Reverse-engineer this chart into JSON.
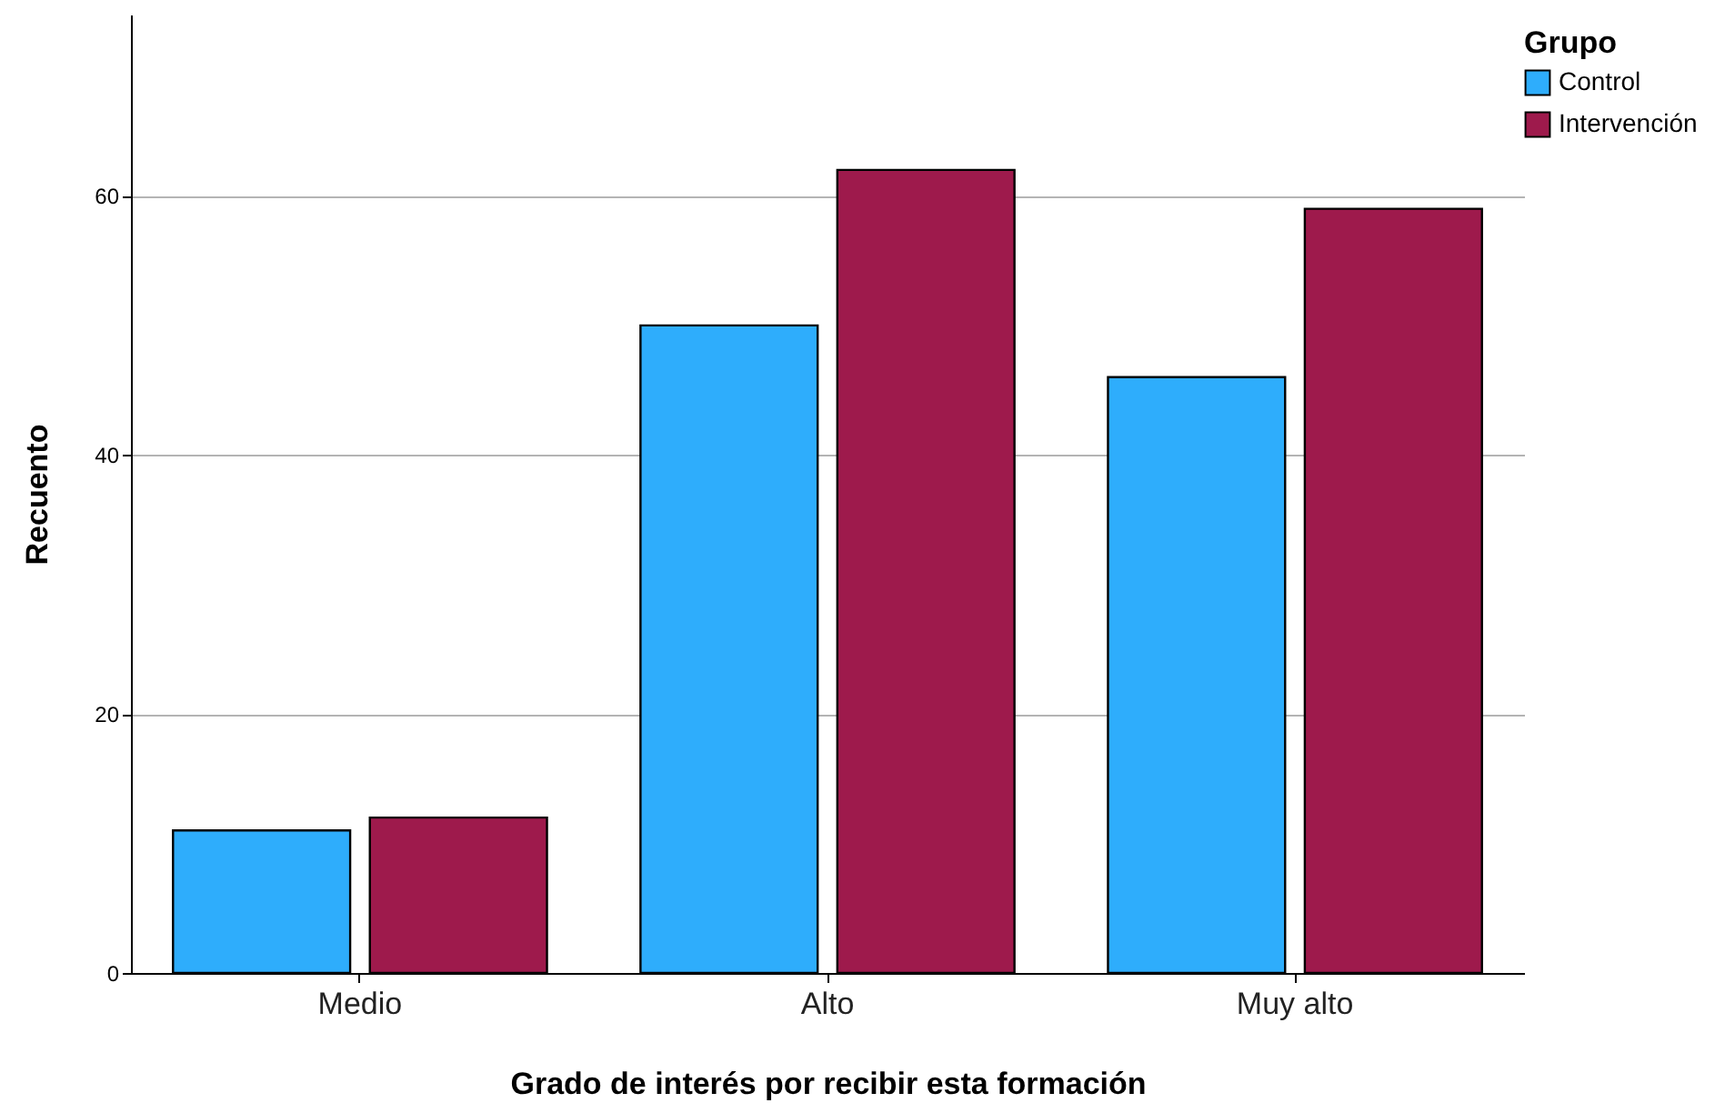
{
  "chart_data": {
    "type": "bar",
    "xlabel": "Grado de interés por recibir esta formación",
    "ylabel": "Recuento",
    "legend_title": "Grupo",
    "categories": [
      "Medio",
      "Alto",
      "Muy alto"
    ],
    "series": [
      {
        "name": "Control",
        "color": "#2eadfc",
        "values": [
          11,
          50,
          46
        ]
      },
      {
        "name": "Intervención",
        "color": "#9e1a4c",
        "values": [
          12,
          62,
          59
        ]
      }
    ],
    "ylim": [
      0,
      74
    ],
    "yticks": [
      0,
      20,
      40,
      60
    ],
    "grid": "y",
    "legend": "top right"
  }
}
